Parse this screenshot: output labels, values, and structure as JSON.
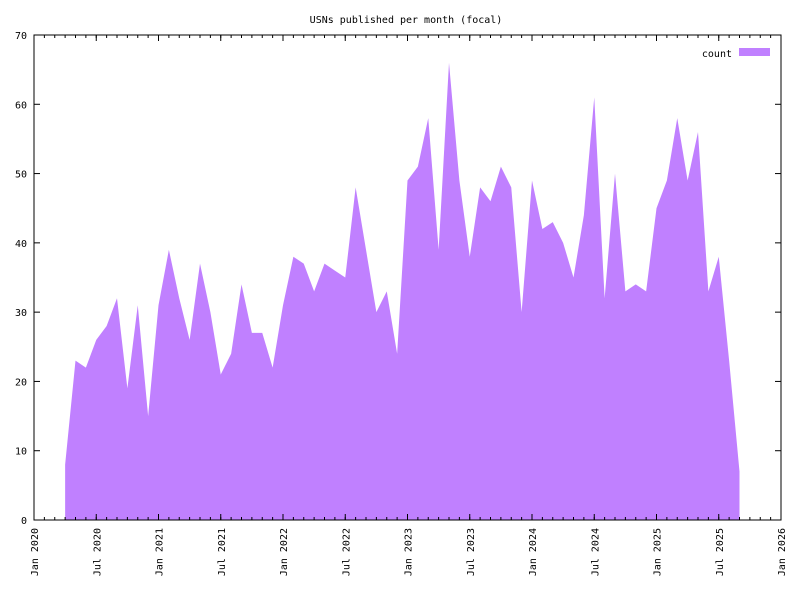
{
  "chart_data": {
    "type": "area",
    "title": "USNs published per month (focal)",
    "xlabel": "",
    "ylabel": "",
    "grid": false,
    "legend_position": "top-right",
    "series": [
      {
        "name": "count",
        "color": "#c080ff",
        "points": [
          [
            "2020-04",
            8
          ],
          [
            "2020-05",
            23
          ],
          [
            "2020-06",
            22
          ],
          [
            "2020-07",
            26
          ],
          [
            "2020-08",
            28
          ],
          [
            "2020-09",
            32
          ],
          [
            "2020-10",
            19
          ],
          [
            "2020-11",
            31
          ],
          [
            "2020-12",
            15
          ],
          [
            "2021-01",
            31
          ],
          [
            "2021-02",
            39
          ],
          [
            "2021-03",
            32
          ],
          [
            "2021-04",
            26
          ],
          [
            "2021-05",
            37
          ],
          [
            "2021-06",
            30
          ],
          [
            "2021-07",
            21
          ],
          [
            "2021-08",
            24
          ],
          [
            "2021-09",
            34
          ],
          [
            "2021-10",
            27
          ],
          [
            "2021-11",
            27
          ],
          [
            "2021-12",
            22
          ],
          [
            "2022-01",
            31
          ],
          [
            "2022-02",
            38
          ],
          [
            "2022-03",
            37
          ],
          [
            "2022-04",
            33
          ],
          [
            "2022-05",
            37
          ],
          [
            "2022-06",
            36
          ],
          [
            "2022-07",
            35
          ],
          [
            "2022-08",
            48
          ],
          [
            "2022-09",
            39
          ],
          [
            "2022-10",
            30
          ],
          [
            "2022-11",
            33
          ],
          [
            "2022-12",
            24
          ],
          [
            "2023-01",
            49
          ],
          [
            "2023-02",
            51
          ],
          [
            "2023-03",
            58
          ],
          [
            "2023-04",
            39
          ],
          [
            "2023-05",
            66
          ],
          [
            "2023-06",
            49
          ],
          [
            "2023-07",
            38
          ],
          [
            "2023-08",
            48
          ],
          [
            "2023-09",
            46
          ],
          [
            "2023-10",
            51
          ],
          [
            "2023-11",
            48
          ],
          [
            "2023-12",
            30
          ],
          [
            "2024-01",
            49
          ],
          [
            "2024-02",
            42
          ],
          [
            "2024-03",
            43
          ],
          [
            "2024-04",
            40
          ],
          [
            "2024-05",
            35
          ],
          [
            "2024-06",
            44
          ],
          [
            "2024-07",
            61
          ],
          [
            "2024-08",
            32
          ],
          [
            "2024-09",
            50
          ],
          [
            "2024-10",
            33
          ],
          [
            "2024-11",
            34
          ],
          [
            "2024-12",
            33
          ],
          [
            "2025-01",
            45
          ],
          [
            "2025-02",
            49
          ],
          [
            "2025-03",
            58
          ],
          [
            "2025-04",
            49
          ],
          [
            "2025-05",
            56
          ],
          [
            "2025-06",
            33
          ],
          [
            "2025-07",
            38
          ],
          [
            "2025-08",
            23
          ],
          [
            "2025-09",
            7
          ]
        ]
      }
    ],
    "x_range": [
      "2020-01",
      "2026-01"
    ],
    "y_range": [
      0,
      70
    ],
    "y_ticks": [
      0,
      10,
      20,
      30,
      40,
      50,
      60,
      70
    ],
    "x_ticks": [
      {
        "date": "2020-01",
        "label": "Jan 2020"
      },
      {
        "date": "2020-07",
        "label": "Jul 2020"
      },
      {
        "date": "2021-01",
        "label": "Jan 2021"
      },
      {
        "date": "2021-07",
        "label": "Jul 2021"
      },
      {
        "date": "2022-01",
        "label": "Jan 2022"
      },
      {
        "date": "2022-07",
        "label": "Jul 2022"
      },
      {
        "date": "2023-01",
        "label": "Jan 2023"
      },
      {
        "date": "2023-07",
        "label": "Jul 2023"
      },
      {
        "date": "2024-01",
        "label": "Jan 2024"
      },
      {
        "date": "2024-07",
        "label": "Jul 2024"
      },
      {
        "date": "2025-01",
        "label": "Jan 2025"
      },
      {
        "date": "2025-07",
        "label": "Jul 2025"
      },
      {
        "date": "2026-01",
        "label": "Jan 2026"
      }
    ]
  }
}
